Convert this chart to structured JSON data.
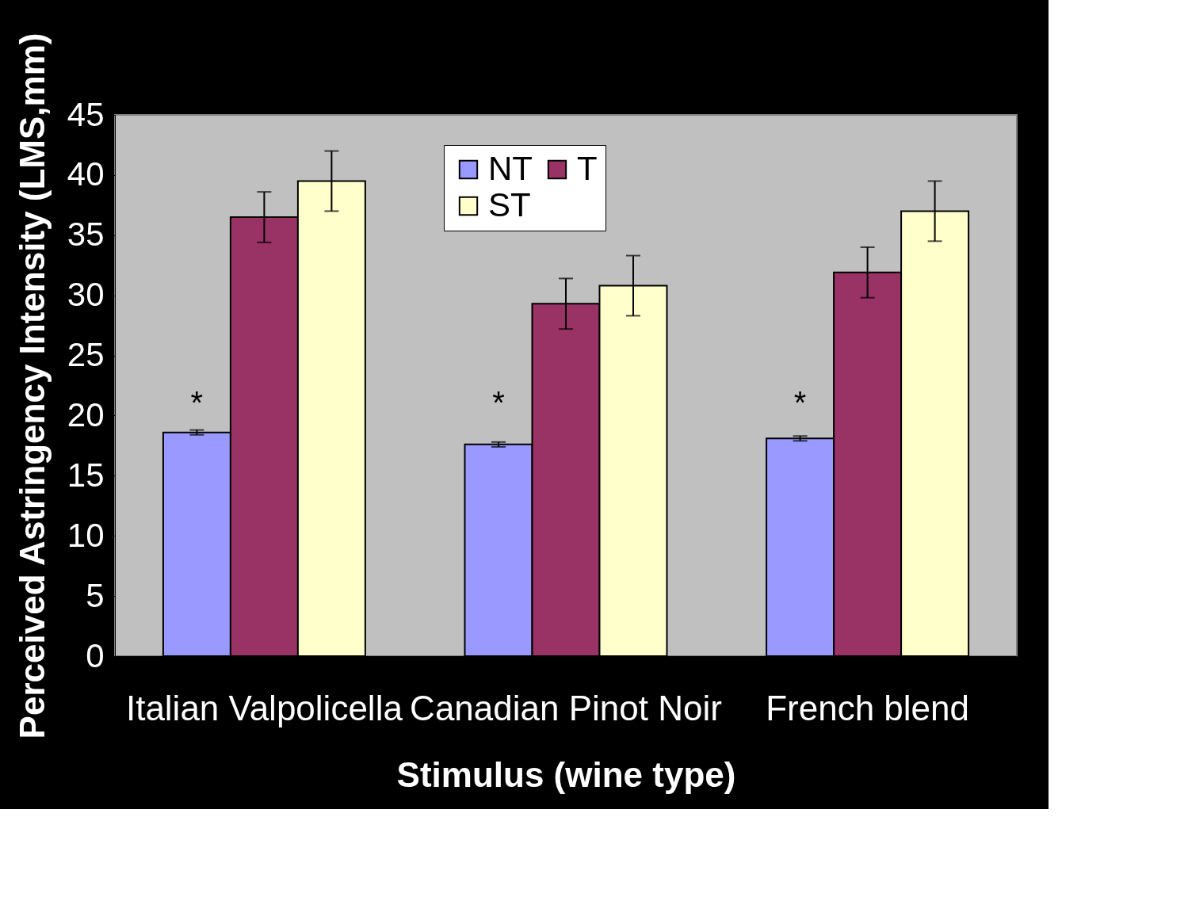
{
  "chart_data": {
    "type": "bar",
    "xlabel": "Stimulus (wine type)",
    "ylabel": "Perceived Astringency Intensity (LMS,mm)",
    "categories": [
      "Italian Valpolicella",
      "Canadian Pinot Noir",
      "French blend"
    ],
    "series": [
      {
        "name": "NT",
        "color": "#9999ff",
        "values": [
          18.6,
          17.6,
          18.1
        ],
        "errors": [
          0.2,
          0.2,
          0.2
        ]
      },
      {
        "name": "T",
        "color": "#993366",
        "values": [
          36.5,
          29.3,
          31.9
        ],
        "errors": [
          2.1,
          2.1,
          2.1
        ]
      },
      {
        "name": "ST",
        "color": "#ffffcc",
        "values": [
          39.5,
          30.8,
          37.0
        ],
        "errors": [
          2.5,
          2.5,
          2.5
        ]
      }
    ],
    "ylim": [
      0,
      45
    ],
    "yticks": [
      0,
      5,
      10,
      15,
      20,
      25,
      30,
      35,
      40,
      45
    ],
    "grid": false,
    "legend": "top",
    "annotations": [
      "*",
      "*",
      "*"
    ]
  }
}
